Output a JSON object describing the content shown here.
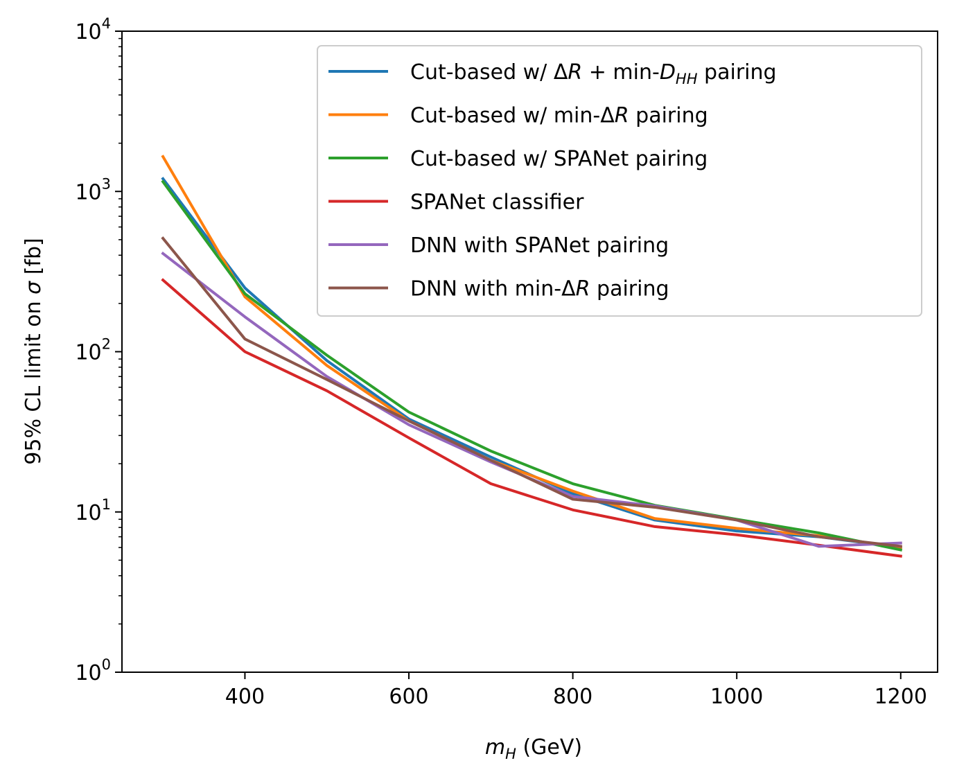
{
  "chart_data": {
    "type": "line",
    "xlabel_var": "m",
    "xlabel_sub": "H",
    "xlabel_unit": " (GeV)",
    "ylabel_text": "95% CL limit on ",
    "ylabel_var": "σ",
    "ylabel_unit": " [fb]",
    "yscale": "log",
    "xlim": [
      250,
      1245
    ],
    "ylim": [
      1,
      10000
    ],
    "x_ticks": [
      400,
      600,
      800,
      1000,
      1200
    ],
    "y_ticks": [
      {
        "value": 1,
        "base": "10",
        "exp": "0"
      },
      {
        "value": 10,
        "base": "10",
        "exp": "1"
      },
      {
        "value": 100,
        "base": "10",
        "exp": "2"
      },
      {
        "value": 1000,
        "base": "10",
        "exp": "3"
      },
      {
        "value": 10000,
        "base": "10",
        "exp": "4"
      }
    ],
    "legend_position": "top-right",
    "x": [
      300,
      400,
      500,
      600,
      700,
      800,
      900,
      1000,
      1100,
      1200
    ],
    "series": [
      {
        "name": "Cut-based w/ ΔR + min-D_HH pairing",
        "legend": {
          "pre": "Cut-based w/ Δ",
          "var": "R",
          "mid": " + min-",
          "var2": "D",
          "sub": "HH",
          "post": " pairing"
        },
        "color": "#1f77b4",
        "values": [
          1200,
          250,
          88,
          38,
          22,
          13,
          8.9,
          7.6,
          7.0,
          6.0
        ]
      },
      {
        "name": "Cut-based w/ min-ΔR pairing",
        "legend": {
          "pre": "Cut-based w/ min-Δ",
          "var": "R",
          "post": " pairing"
        },
        "color": "#ff7f0e",
        "values": [
          1650,
          220,
          82,
          37,
          21,
          13.5,
          9.1,
          7.9,
          7.1,
          6.0
        ]
      },
      {
        "name": "Cut-based w/ SPANet pairing",
        "legend": {
          "pre": "Cut-based w/ SPANet pairing"
        },
        "color": "#2ca02c",
        "values": [
          1150,
          230,
          95,
          42,
          24,
          15,
          11,
          9.0,
          7.4,
          5.8
        ]
      },
      {
        "name": "SPANet classifier",
        "legend": {
          "pre": "SPANet classifier"
        },
        "color": "#d62728",
        "values": [
          280,
          100,
          57,
          29,
          15,
          10.3,
          8.1,
          7.2,
          6.2,
          5.3
        ]
      },
      {
        "name": "DNN with SPANet pairing",
        "legend": {
          "pre": "DNN with SPANet pairing"
        },
        "color": "#9467bd",
        "values": [
          410,
          165,
          70,
          35,
          20.5,
          12.5,
          10.9,
          8.9,
          6.1,
          6.4
        ]
      },
      {
        "name": "DNN with min-ΔR pairing",
        "legend": {
          "pre": "DNN with min-Δ",
          "var": "R",
          "post": " pairing"
        },
        "color": "#8c564b",
        "values": [
          510,
          120,
          67,
          37,
          21,
          12,
          10.7,
          8.9,
          7.0,
          6.1
        ]
      }
    ]
  }
}
